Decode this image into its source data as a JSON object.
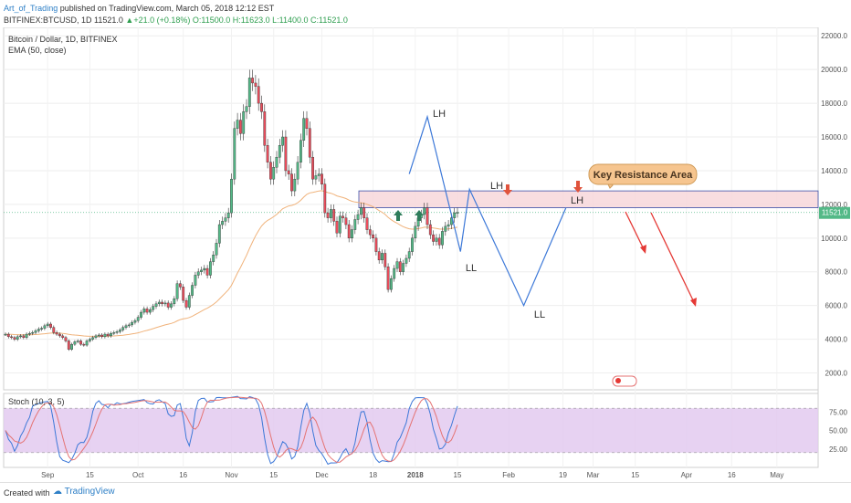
{
  "header": {
    "author": "Art_of_Trading",
    "published": "published on TradingView.com, March 05, 2018 12:12 EST",
    "symbol": "BITFINEX:BTCUSD, 1D",
    "price": "11521.0",
    "change_arrow": "▲",
    "change": "+21.0 (+0.18%)",
    "ohlc": "O:11500.0 H:11623.0 L:11400.0 C:11521.0"
  },
  "legend": {
    "title": "Bitcoin / Dollar, 1D, BITFINEX",
    "ema": "EMA (50, close)",
    "stoch": "Stoch (10, 3, 5)"
  },
  "annotations": {
    "key_resistance": "Key Resistance Area",
    "lh1": "LH",
    "lh2": "LH",
    "lh3": "LH",
    "ll1": "LL",
    "ll2": "LL"
  },
  "price_tag": "11521.0",
  "footer": {
    "created": "Created with",
    "brand": "TradingView"
  },
  "colors": {
    "up": "#53b987",
    "down": "#eb4d5c",
    "ema": "#f0b27a",
    "zone_fill": "#f6d5d8",
    "zone_border": "#3a4fa8",
    "pattern": "#3c78d8",
    "forecast": "#e53935",
    "stoch_k": "#3c78d8",
    "stoch_d": "#e57373",
    "stoch_bg": "#e1c7ef"
  },
  "chart_data": [
    {
      "type": "candlestick",
      "title": "Bitcoin / Dollar, 1D, BITFINEX",
      "ylim": [
        1000,
        22500
      ],
      "yticks": [
        2000,
        4000,
        6000,
        8000,
        10000,
        12000,
        14000,
        16000,
        18000,
        20000,
        22000
      ],
      "xticks": [
        "Sep",
        "15",
        "Oct",
        "16",
        "Nov",
        "15",
        "Dec",
        "18",
        "2018",
        "15",
        "Feb",
        "19",
        "Mar",
        "15",
        "Apr",
        "16",
        "May"
      ],
      "last_price": 11521.0,
      "x_start": "2017-08-18",
      "series": [
        {
          "name": "EMA (50, close)"
        }
      ],
      "key_resistance_zone": [
        11800,
        12800
      ],
      "swing_points": [
        {
          "label": "LH",
          "date": "2018-01-05",
          "value": 17200
        },
        {
          "label": "LL",
          "date": "2018-01-16",
          "value": 9200
        },
        {
          "label": "LH",
          "date": "2018-01-19",
          "value": 12900
        },
        {
          "label": "LL",
          "date": "2018-02-06",
          "value": 6000
        },
        {
          "label": "LH",
          "date": "2018-02-20",
          "value": 11800
        }
      ],
      "daily_closes": [
        4300,
        4150,
        4100,
        4000,
        4150,
        4200,
        4100,
        4300,
        4350,
        4400,
        4500,
        4600,
        4650,
        4800,
        4900,
        4700,
        4400,
        4300,
        4200,
        4100,
        3900,
        3400,
        3700,
        3850,
        3900,
        3700,
        3650,
        3900,
        4000,
        4100,
        4200,
        4250,
        4150,
        4300,
        4200,
        4350,
        4400,
        4450,
        4550,
        4700,
        4800,
        4850,
        5000,
        5100,
        5300,
        5600,
        5800,
        5600,
        5750,
        5950,
        6100,
        6200,
        6100,
        6150,
        5900,
        6100,
        6400,
        7300,
        7100,
        6300,
        5900,
        6600,
        7200,
        7800,
        8000,
        8100,
        8200,
        7800,
        8600,
        9000,
        9700,
        10800,
        11000,
        11200,
        11500,
        13500,
        16500,
        17000,
        16200,
        17500,
        17800,
        19500,
        19200,
        19000,
        18000,
        17500,
        15500,
        14500,
        13500,
        14200,
        14800,
        15500,
        16000,
        14000,
        13800,
        12800,
        13500,
        14500,
        15800,
        17100,
        16500,
        14800,
        13500,
        13700,
        13800,
        13200,
        11500,
        11200,
        11700,
        11000,
        10300,
        11300,
        11200,
        10800,
        10000,
        10500,
        11100,
        11400,
        11800,
        11200,
        10500,
        10200,
        10000,
        9200,
        8700,
        9100,
        8300,
        6950,
        7600,
        8200,
        8600,
        8000,
        8500,
        8800,
        9200,
        10000,
        10700,
        11200,
        11400,
        11800,
        10800,
        10200,
        9800,
        10000,
        9600,
        10400,
        10700,
        10800,
        11200,
        11500,
        11521
      ]
    },
    {
      "type": "line",
      "title": "Stoch (10, 3, 5)",
      "ylim": [
        0,
        100
      ],
      "yticks": [
        25,
        50,
        75
      ],
      "bands": [
        20,
        80
      ],
      "series": [
        {
          "name": "%K"
        },
        {
          "name": "%D"
        }
      ]
    }
  ]
}
